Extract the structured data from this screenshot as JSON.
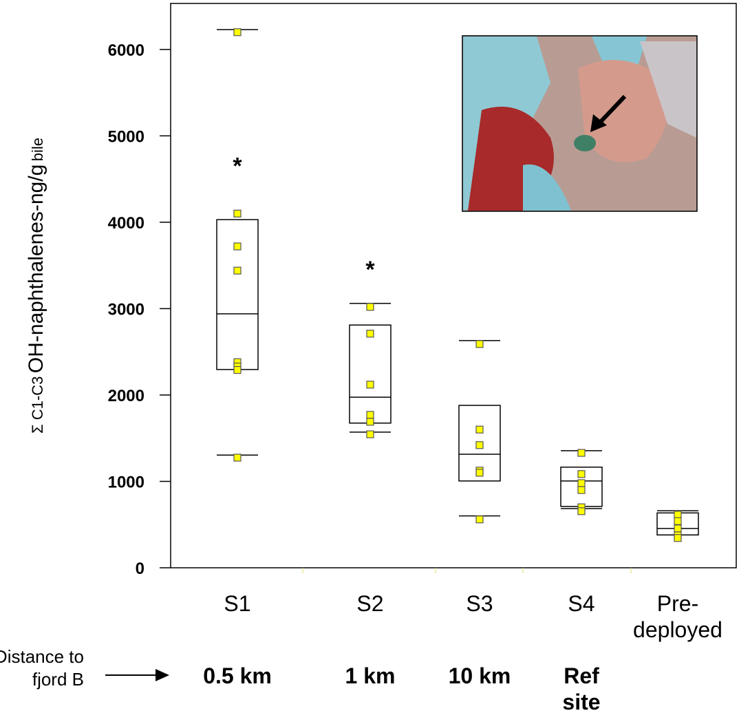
{
  "chart_data": {
    "type": "box",
    "y_label": {
      "prefix": "Σ C1-C3",
      "main": "OH-naphthalenes-ng/g",
      "suffix": "bile"
    },
    "categories": [
      "S1",
      "S2",
      "S3",
      "S4",
      "Pre-\ndeployed"
    ],
    "distance_label": [
      "Distance to",
      "fjord B"
    ],
    "distances": [
      "0.5 km",
      "1 km",
      "10 km",
      "Ref\nsite",
      null
    ],
    "ylim": [
      0,
      6230
    ],
    "yticks": [
      0,
      1000,
      2000,
      3000,
      4000,
      5000,
      6000
    ],
    "point_color": "#ffff00",
    "boxes": [
      {
        "whisker_high": 6230,
        "q3": 4030,
        "median": 2940,
        "q1": 2295,
        "whisker_low": 1305,
        "points": [
          6200,
          4100,
          3720,
          3440,
          2380,
          2330,
          2290,
          1275
        ]
      },
      {
        "whisker_high": 3060,
        "q3": 2810,
        "median": 1975,
        "q1": 1675,
        "whisker_low": 1570,
        "points": [
          3020,
          2710,
          2120,
          1770,
          1690,
          1545
        ]
      },
      {
        "whisker_high": 2630,
        "q3": 1880,
        "median": 1315,
        "q1": 1005,
        "whisker_low": 600,
        "points": [
          2590,
          1600,
          1420,
          1125,
          1100,
          560
        ]
      },
      {
        "whisker_high": 1355,
        "q3": 1165,
        "median": 1005,
        "q1": 710,
        "whisker_low": 685,
        "points": [
          1330,
          1085,
          980,
          900,
          700,
          655
        ]
      },
      {
        "whisker_high": 660,
        "q3": 635,
        "median": 455,
        "q1": 380,
        "whisker_low": 380,
        "points": [
          615,
          540,
          455,
          375,
          345
        ]
      }
    ],
    "annotations": [
      {
        "text": "*",
        "category": 0,
        "y": 4720
      },
      {
        "text": "*",
        "category": 1,
        "y": 3520
      }
    ]
  }
}
